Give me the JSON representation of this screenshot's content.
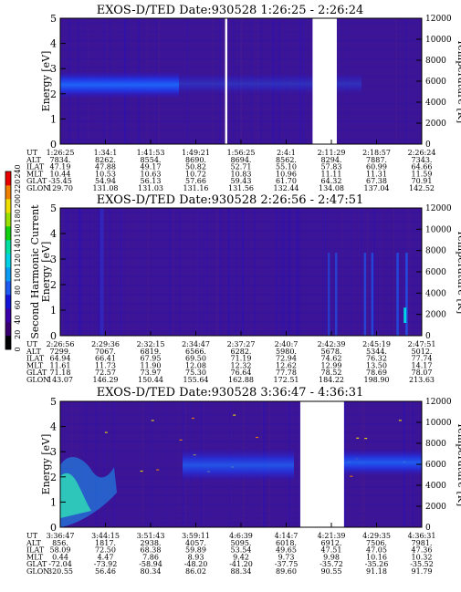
{
  "chart_data": [
    {
      "type": "heatmap",
      "title": "EXOS-D/TED   Date:930528   1:26:25 - 2:26:24",
      "ylabel": "Energy [eV]",
      "y2label": "Temperature [K]",
      "ylim": [
        0,
        5
      ],
      "y2lim": [
        0,
        12000
      ],
      "yticks": [
        0,
        1,
        2,
        3,
        4,
        5
      ],
      "y2ticks": [
        0,
        2000,
        4000,
        6000,
        8000,
        10000,
        12000
      ],
      "gaps": [
        [
          0.456,
          0.462
        ],
        [
          0.698,
          0.765
        ]
      ],
      "band": {
        "center_eV": 2.4,
        "width_eV": 0.7
      },
      "ephemeris": {
        "labels": [
          "UT",
          "ALT",
          "ILAT",
          "MLT",
          "GLAT",
          "GLON"
        ],
        "columns": [
          [
            "1:26:25",
            "7834.",
            "47.19",
            "10.44",
            "-35.45",
            "129.70"
          ],
          [
            "1:34:1",
            "8262.",
            "47.88",
            "10.53",
            "54.94",
            "131.08"
          ],
          [
            "1:41:53",
            "8554.",
            "49.17",
            "10.63",
            "56.13",
            "131.03"
          ],
          [
            "1:49:21",
            "8690.",
            "50.82",
            "10.72",
            "57.66",
            "131.16"
          ],
          [
            "1:56:25",
            "8694.",
            "52.71",
            "10.83",
            "59.43",
            "131.56"
          ],
          [
            "2:4:1",
            "8562.",
            "55.10",
            "10.96",
            "61.70",
            "132.44"
          ],
          [
            "2:11:29",
            "8294.",
            "57.83",
            "11.11",
            "64.32",
            "134.08"
          ],
          [
            "2:18:57",
            "7887.",
            "60.99",
            "11.31",
            "67.38",
            "137.04"
          ],
          [
            "2:26:24",
            "7343.",
            "64.66",
            "11.59",
            "70.91",
            "142.52"
          ]
        ]
      }
    },
    {
      "type": "heatmap",
      "title": "EXOS-D/TED   Date:930528   2:26:56 - 2:47:51",
      "ylabel": "Energy [eV]",
      "y2label": "Temperature [K]",
      "ylim": [
        0,
        5
      ],
      "y2lim": [
        0,
        12000
      ],
      "yticks": [
        0,
        1,
        2,
        3,
        4,
        5
      ],
      "y2ticks": [
        0,
        2000,
        4000,
        6000,
        8000,
        10000,
        12000
      ],
      "gaps": [],
      "colorbar": {
        "label": "Second Harmonic Current",
        "ticks": [
          "0",
          "20",
          "40",
          "60",
          "80",
          "100",
          "120",
          "140",
          "160",
          "180",
          "200",
          "220",
          "240"
        ],
        "colors": [
          "#000000",
          "#3a0070",
          "#3c00aa",
          "#1414d8",
          "#1e5af0",
          "#0a9cf4",
          "#00d2e6",
          "#00e0a0",
          "#10d010",
          "#9ae000",
          "#f0e000",
          "#f08000",
          "#e80000"
        ]
      },
      "ephemeris": {
        "labels": [
          "UT",
          "ALT",
          "ILAT",
          "MLT",
          "GLAT",
          "GLON"
        ],
        "columns": [
          [
            "2:26:56",
            "7299.",
            "64.94",
            "11.61",
            "71.18",
            "143.07"
          ],
          [
            "2:29:36",
            "7067.",
            "66.41",
            "11.73",
            "72.57",
            "146.29"
          ],
          [
            "2:32:15",
            "6819.",
            "67.95",
            "11.90",
            "73.97",
            "150.44"
          ],
          [
            "2:34:47",
            "6566.",
            "69.50",
            "12.08",
            "75.30",
            "155.64"
          ],
          [
            "2:37:27",
            "6282.",
            "71.19",
            "12.32",
            "76.64",
            "162.88"
          ],
          [
            "2:40:7",
            "5980.",
            "72.94",
            "12.62",
            "77.78",
            "172.51"
          ],
          [
            "2:42:39",
            "5678.",
            "74.62",
            "12.99",
            "78.52",
            "184.22"
          ],
          [
            "2:45:19",
            "5344.",
            "76.32",
            "13.50",
            "78.69",
            "198.90"
          ],
          [
            "2:47:51",
            "5012.",
            "77.74",
            "14.17",
            "78.07",
            "213.63"
          ]
        ]
      }
    },
    {
      "type": "heatmap",
      "title": "EXOS-D/TED   Date:930528   3:36:47 - 4:36:31",
      "ylabel": "Energy [eV]",
      "y2label": "Temperature [K]",
      "ylim": [
        0,
        5
      ],
      "y2lim": [
        0,
        12000
      ],
      "yticks": [
        0,
        1,
        2,
        3,
        4,
        5
      ],
      "y2ticks": [
        0,
        2000,
        4000,
        6000,
        8000,
        10000,
        12000
      ],
      "gaps": [
        [
          0.664,
          0.785
        ]
      ],
      "ephemeris": {
        "labels": [
          "UT",
          "ALT",
          "ILAT",
          "MLT",
          "GLAT",
          "GLON"
        ],
        "columns": [
          [
            "3:36:47",
            "856.",
            "58.09",
            "0.44",
            "-72.04",
            "320.55"
          ],
          [
            "3:44:15",
            "1817.",
            "72.50",
            "4.47",
            "-73.92",
            "56.46"
          ],
          [
            "3:51:43",
            "2938.",
            "68.38",
            "7.86",
            "-58.94",
            "80.34"
          ],
          [
            "3:59:11",
            "4057.",
            "59.89",
            "8.93",
            "-48.20",
            "86.02"
          ],
          [
            "4:6:39",
            "5095.",
            "53.54",
            "9.42",
            "-41.20",
            "88.34"
          ],
          [
            "4:14:7",
            "6018.",
            "49.65",
            "9.73",
            "-37.75",
            "89.60"
          ],
          [
            "4:21:39",
            "6912.",
            "47.51",
            "9.98",
            "-35.72",
            "90.55"
          ],
          [
            "4:29:35",
            "7506.",
            "47.05",
            "10.16",
            "-35.26",
            "91.18"
          ],
          [
            "4:36:31",
            "7981.",
            "47.36",
            "10.32",
            "-35.52",
            "91.79"
          ]
        ]
      }
    }
  ]
}
